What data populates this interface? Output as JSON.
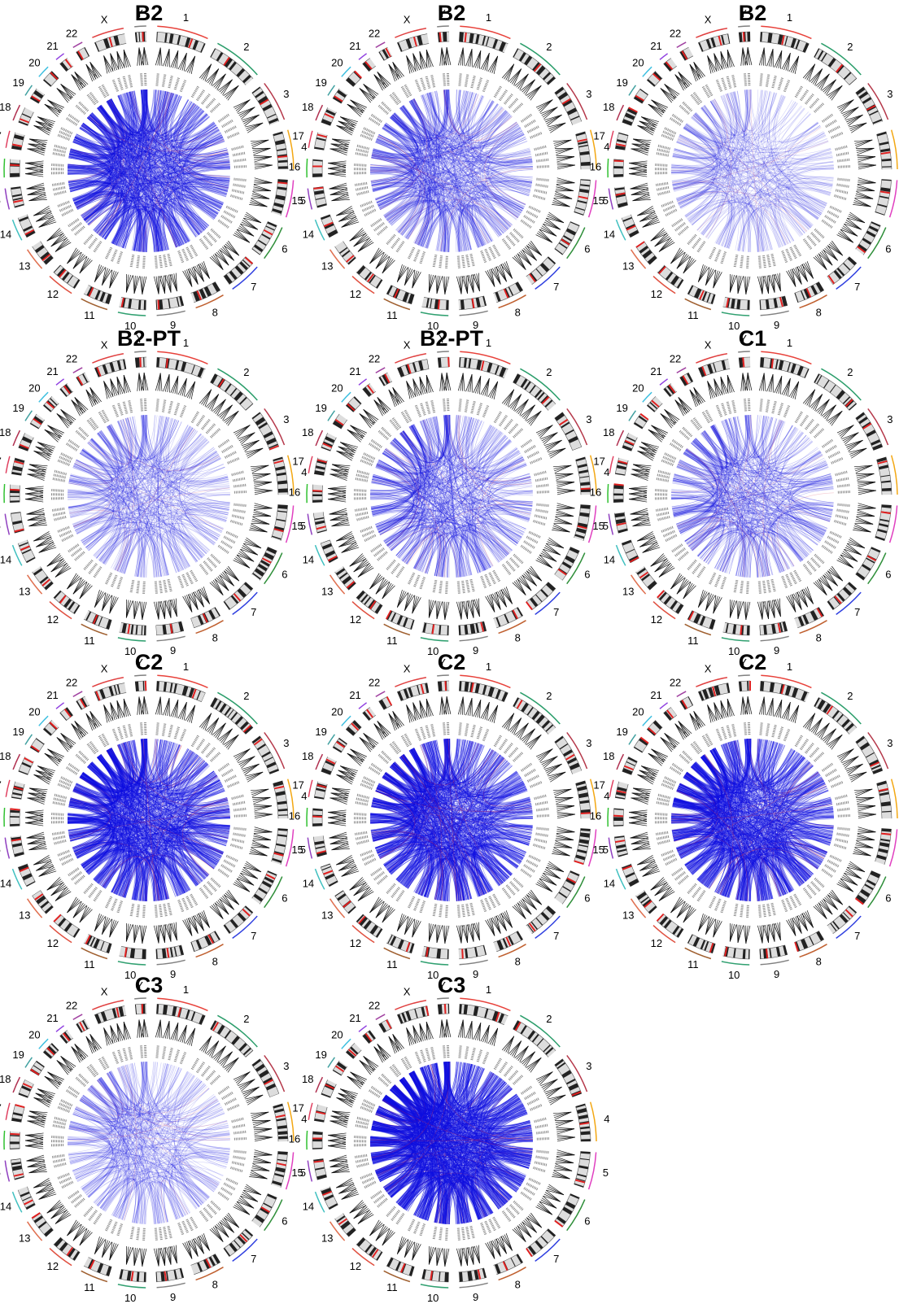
{
  "panels": [
    {
      "title": "B2"
    },
    {
      "title": "B2"
    },
    {
      "title": "B2"
    },
    {
      "title": "B2-PT"
    },
    {
      "title": "B2-PT"
    },
    {
      "title": "C1"
    },
    {
      "title": "C2"
    },
    {
      "title": "C2"
    },
    {
      "title": "C2"
    },
    {
      "title": "C3"
    },
    {
      "title": "C3"
    }
  ],
  "chromosome_labels": [
    "1",
    "2",
    "3",
    "4",
    "5",
    "6",
    "7",
    "8",
    "9",
    "10",
    "11",
    "12",
    "13",
    "14",
    "15",
    "16",
    "17",
    "18",
    "19",
    "20",
    "21",
    "22",
    "X",
    "Y"
  ]
}
